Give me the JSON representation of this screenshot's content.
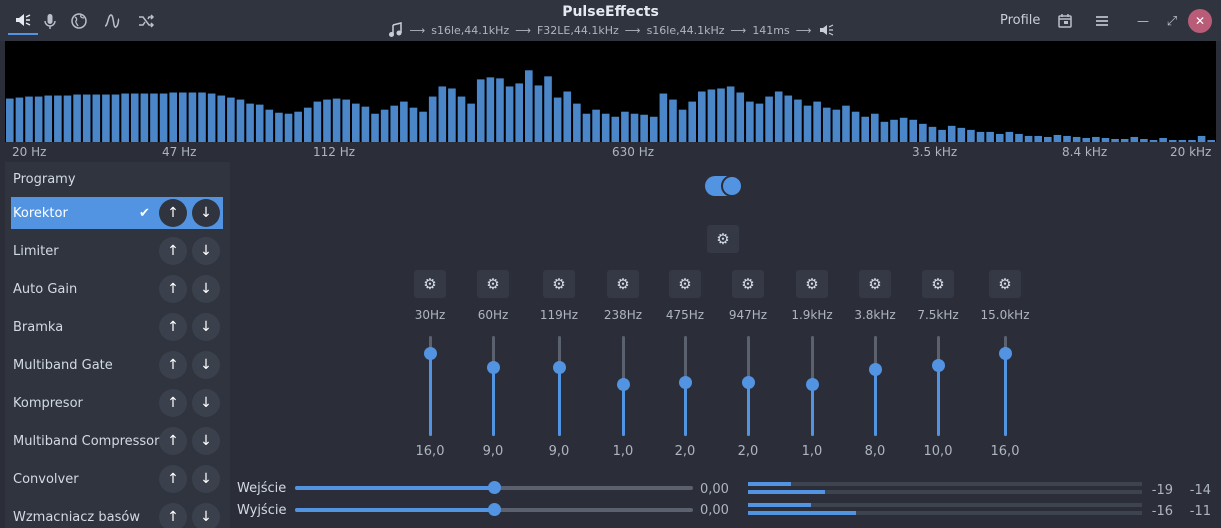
{
  "header": {
    "title": "PulseEffects",
    "pipeline": {
      "source_icon": "music-note-icon",
      "stage1": "s16le,44.1kHz",
      "stage2": "F32LE,44.1kHz",
      "stage3": "s16le,44.1kHz",
      "latency": "141ms",
      "sink_icon": "speaker-muted-icon"
    },
    "profile_label": "Profile",
    "left_buttons": [
      "speaker-icon",
      "microphone-icon",
      "globe-icon",
      "pulse-wave-icon",
      "shuffle-icon"
    ],
    "right_buttons": [
      "calendar-icon",
      "hamburger-menu-icon",
      "minimize-icon",
      "maximize-icon",
      "close-icon"
    ],
    "close_symbol": "✕",
    "minimize_symbol": "—",
    "maximize_symbol": "⤢",
    "arrow": "⟶"
  },
  "spectrum": {
    "color": "#4a86c8",
    "levels": [
      0.43,
      0.44,
      0.45,
      0.45,
      0.46,
      0.46,
      0.46,
      0.47,
      0.47,
      0.47,
      0.47,
      0.47,
      0.48,
      0.48,
      0.48,
      0.48,
      0.48,
      0.49,
      0.49,
      0.49,
      0.49,
      0.48,
      0.46,
      0.44,
      0.42,
      0.38,
      0.37,
      0.32,
      0.29,
      0.28,
      0.3,
      0.34,
      0.4,
      0.42,
      0.43,
      0.42,
      0.38,
      0.35,
      0.28,
      0.32,
      0.36,
      0.4,
      0.34,
      0.3,
      0.45,
      0.55,
      0.53,
      0.45,
      0.38,
      0.62,
      0.64,
      0.63,
      0.55,
      0.58,
      0.71,
      0.56,
      0.65,
      0.44,
      0.5,
      0.38,
      0.28,
      0.32,
      0.28,
      0.25,
      0.3,
      0.28,
      0.27,
      0.25,
      0.48,
      0.42,
      0.32,
      0.4,
      0.5,
      0.52,
      0.53,
      0.55,
      0.49,
      0.4,
      0.38,
      0.45,
      0.5,
      0.46,
      0.42,
      0.36,
      0.4,
      0.34,
      0.32,
      0.36,
      0.3,
      0.25,
      0.28,
      0.2,
      0.22,
      0.24,
      0.22,
      0.18,
      0.15,
      0.12,
      0.16,
      0.14,
      0.12,
      0.1,
      0.1,
      0.08,
      0.1,
      0.08,
      0.06,
      0.06,
      0.05,
      0.07,
      0.06,
      0.05,
      0.04,
      0.05,
      0.04,
      0.03,
      0.03,
      0.05,
      0.03,
      0.02,
      0.04,
      0.02,
      0.02,
      0.02,
      0.06,
      0.02
    ],
    "freq_labels": [
      "20 Hz",
      "47 Hz",
      "112 Hz",
      "630 Hz",
      "3.5 kHz",
      "8.4 kHz",
      "20 kHz"
    ]
  },
  "plugins": {
    "title": "Programy",
    "check_symbol": "✔",
    "up_symbol": "↑",
    "down_symbol": "↓",
    "items": [
      {
        "label": "Korektor",
        "selected": true
      },
      {
        "label": "Limiter",
        "selected": false
      },
      {
        "label": "Auto Gain",
        "selected": false
      },
      {
        "label": "Bramka",
        "selected": false
      },
      {
        "label": "Multiband Gate",
        "selected": false
      },
      {
        "label": "Kompresor",
        "selected": false
      },
      {
        "label": "Multiband Compressor",
        "selected": false
      },
      {
        "label": "Convolver",
        "selected": false
      },
      {
        "label": "Wzmacniacz basów",
        "selected": false
      }
    ]
  },
  "equalizer": {
    "enabled": true,
    "gear_symbol": "⚙",
    "gain_range": [
      -24,
      24
    ],
    "bands": [
      {
        "freq": "30Hz",
        "value": "16,0",
        "level": 16
      },
      {
        "freq": "60Hz",
        "value": "9,0",
        "level": 9
      },
      {
        "freq": "119Hz",
        "value": "9,0",
        "level": 9
      },
      {
        "freq": "238Hz",
        "value": "1,0",
        "level": 1
      },
      {
        "freq": "475Hz",
        "value": "2,0",
        "level": 2
      },
      {
        "freq": "947Hz",
        "value": "2,0",
        "level": 2
      },
      {
        "freq": "1.9kHz",
        "value": "1,0",
        "level": 1
      },
      {
        "freq": "3.8kHz",
        "value": "8,0",
        "level": 8
      },
      {
        "freq": "7.5kHz",
        "value": "10,0",
        "level": 10
      },
      {
        "freq": "15.0kHz",
        "value": "16,0",
        "level": 16
      }
    ]
  },
  "levels": {
    "input": {
      "label": "Wejście",
      "value": "0,00",
      "slider": 0.5,
      "meter_left": "-19",
      "meter_right": "-14",
      "meter_top_fill": 0.11,
      "meter_bottom_fill": 0.195
    },
    "output": {
      "label": "Wyjście",
      "value": "0,00",
      "slider": 0.5,
      "meter_left": "-16",
      "meter_right": "-11",
      "meter_top_fill": 0.16,
      "meter_bottom_fill": 0.275
    }
  }
}
